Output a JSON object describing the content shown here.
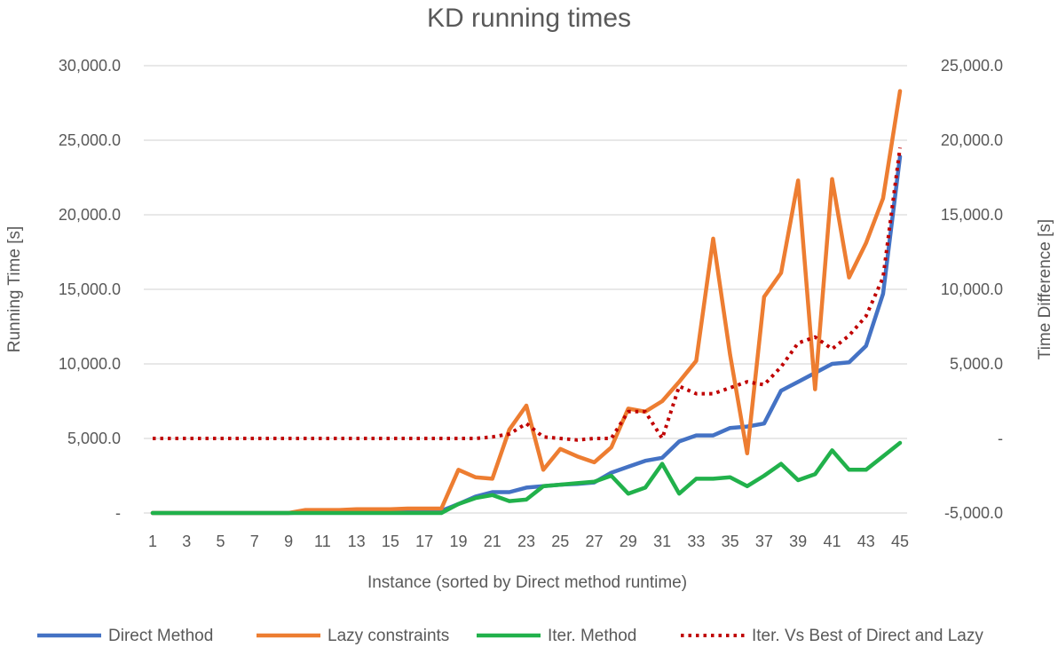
{
  "chart_data": {
    "type": "line",
    "title": "KD running times",
    "xlabel": "Instance (sorted by Direct method  runtime)",
    "ylabel": "Running Time  [s]",
    "y2label": "Time Difference [s]",
    "x": [
      1,
      2,
      3,
      4,
      5,
      6,
      7,
      8,
      9,
      10,
      11,
      12,
      13,
      14,
      15,
      16,
      17,
      18,
      19,
      20,
      21,
      22,
      23,
      24,
      25,
      26,
      27,
      28,
      29,
      30,
      31,
      32,
      33,
      34,
      35,
      36,
      37,
      38,
      39,
      40,
      41,
      42,
      43,
      44,
      45
    ],
    "x_tick_labels": [
      "1",
      "3",
      "5",
      "7",
      "9",
      "11",
      "13",
      "15",
      "17",
      "19",
      "21",
      "23",
      "25",
      "27",
      "29",
      "31",
      "33",
      "35",
      "37",
      "39",
      "41",
      "43",
      "45"
    ],
    "ylim": [
      0,
      30000
    ],
    "y_tick_labels": [
      "-",
      "5,000.0",
      "10,000.0",
      "15,000.0",
      "20,000.0",
      "25,000.0",
      "30,000.0"
    ],
    "y2lim": [
      -5000,
      25000
    ],
    "y2_tick_labels": [
      "-5,000.0",
      "-",
      "5,000.0",
      "10,000.0",
      "15,000.0",
      "20,000.0",
      "25,000.0"
    ],
    "grid": true,
    "legend_position": "bottom",
    "series": [
      {
        "name": "Direct Method",
        "axis": "left",
        "style": "solid",
        "color": "#4472C4",
        "values": [
          0,
          0,
          0,
          0,
          0,
          0,
          0,
          0,
          0,
          50,
          50,
          50,
          80,
          100,
          100,
          120,
          150,
          150,
          600,
          1100,
          1400,
          1400,
          1700,
          1800,
          1900,
          1950,
          2050,
          2700,
          3100,
          3500,
          3700,
          4800,
          5200,
          5200,
          5700,
          5800,
          6000,
          8200,
          8800,
          9400,
          10000,
          10100,
          11200,
          14700,
          23900
        ]
      },
      {
        "name": "Lazy constraints",
        "axis": "left",
        "style": "solid",
        "color": "#ED7D31",
        "values": [
          0,
          0,
          0,
          0,
          0,
          0,
          0,
          0,
          0,
          200,
          200,
          200,
          250,
          250,
          250,
          300,
          300,
          300,
          2900,
          2400,
          2300,
          5600,
          7200,
          2900,
          4300,
          3800,
          3400,
          4400,
          7000,
          6800,
          7500,
          8800,
          10200,
          18400,
          10600,
          4000,
          14500,
          16100,
          22300,
          8300,
          22400,
          15800,
          18100,
          21100,
          28300
        ]
      },
      {
        "name": "Iter. Method",
        "axis": "left",
        "style": "solid",
        "color": "#21B14B",
        "values": [
          0,
          0,
          0,
          0,
          0,
          0,
          0,
          0,
          0,
          0,
          0,
          0,
          0,
          0,
          0,
          0,
          0,
          0,
          600,
          1000,
          1200,
          800,
          900,
          1800,
          1900,
          2000,
          2100,
          2500,
          1300,
          1700,
          3300,
          1300,
          2300,
          2300,
          2400,
          1800,
          2500,
          3300,
          2200,
          2600,
          4200,
          2900,
          2900,
          3800,
          4700
        ]
      },
      {
        "name": "Iter. Vs Best of Direct and Lazy",
        "axis": "right",
        "style": "dotted",
        "color": "#C00000",
        "values": [
          0,
          0,
          0,
          0,
          0,
          0,
          0,
          0,
          0,
          0,
          0,
          0,
          0,
          0,
          0,
          0,
          0,
          0,
          0,
          0,
          100,
          300,
          1000,
          100,
          0,
          -100,
          0,
          0,
          1800,
          1800,
          0,
          3500,
          3000,
          3000,
          3400,
          3800,
          3600,
          4800,
          6400,
          6800,
          6000,
          6900,
          8200,
          10800,
          19500
        ]
      }
    ]
  }
}
